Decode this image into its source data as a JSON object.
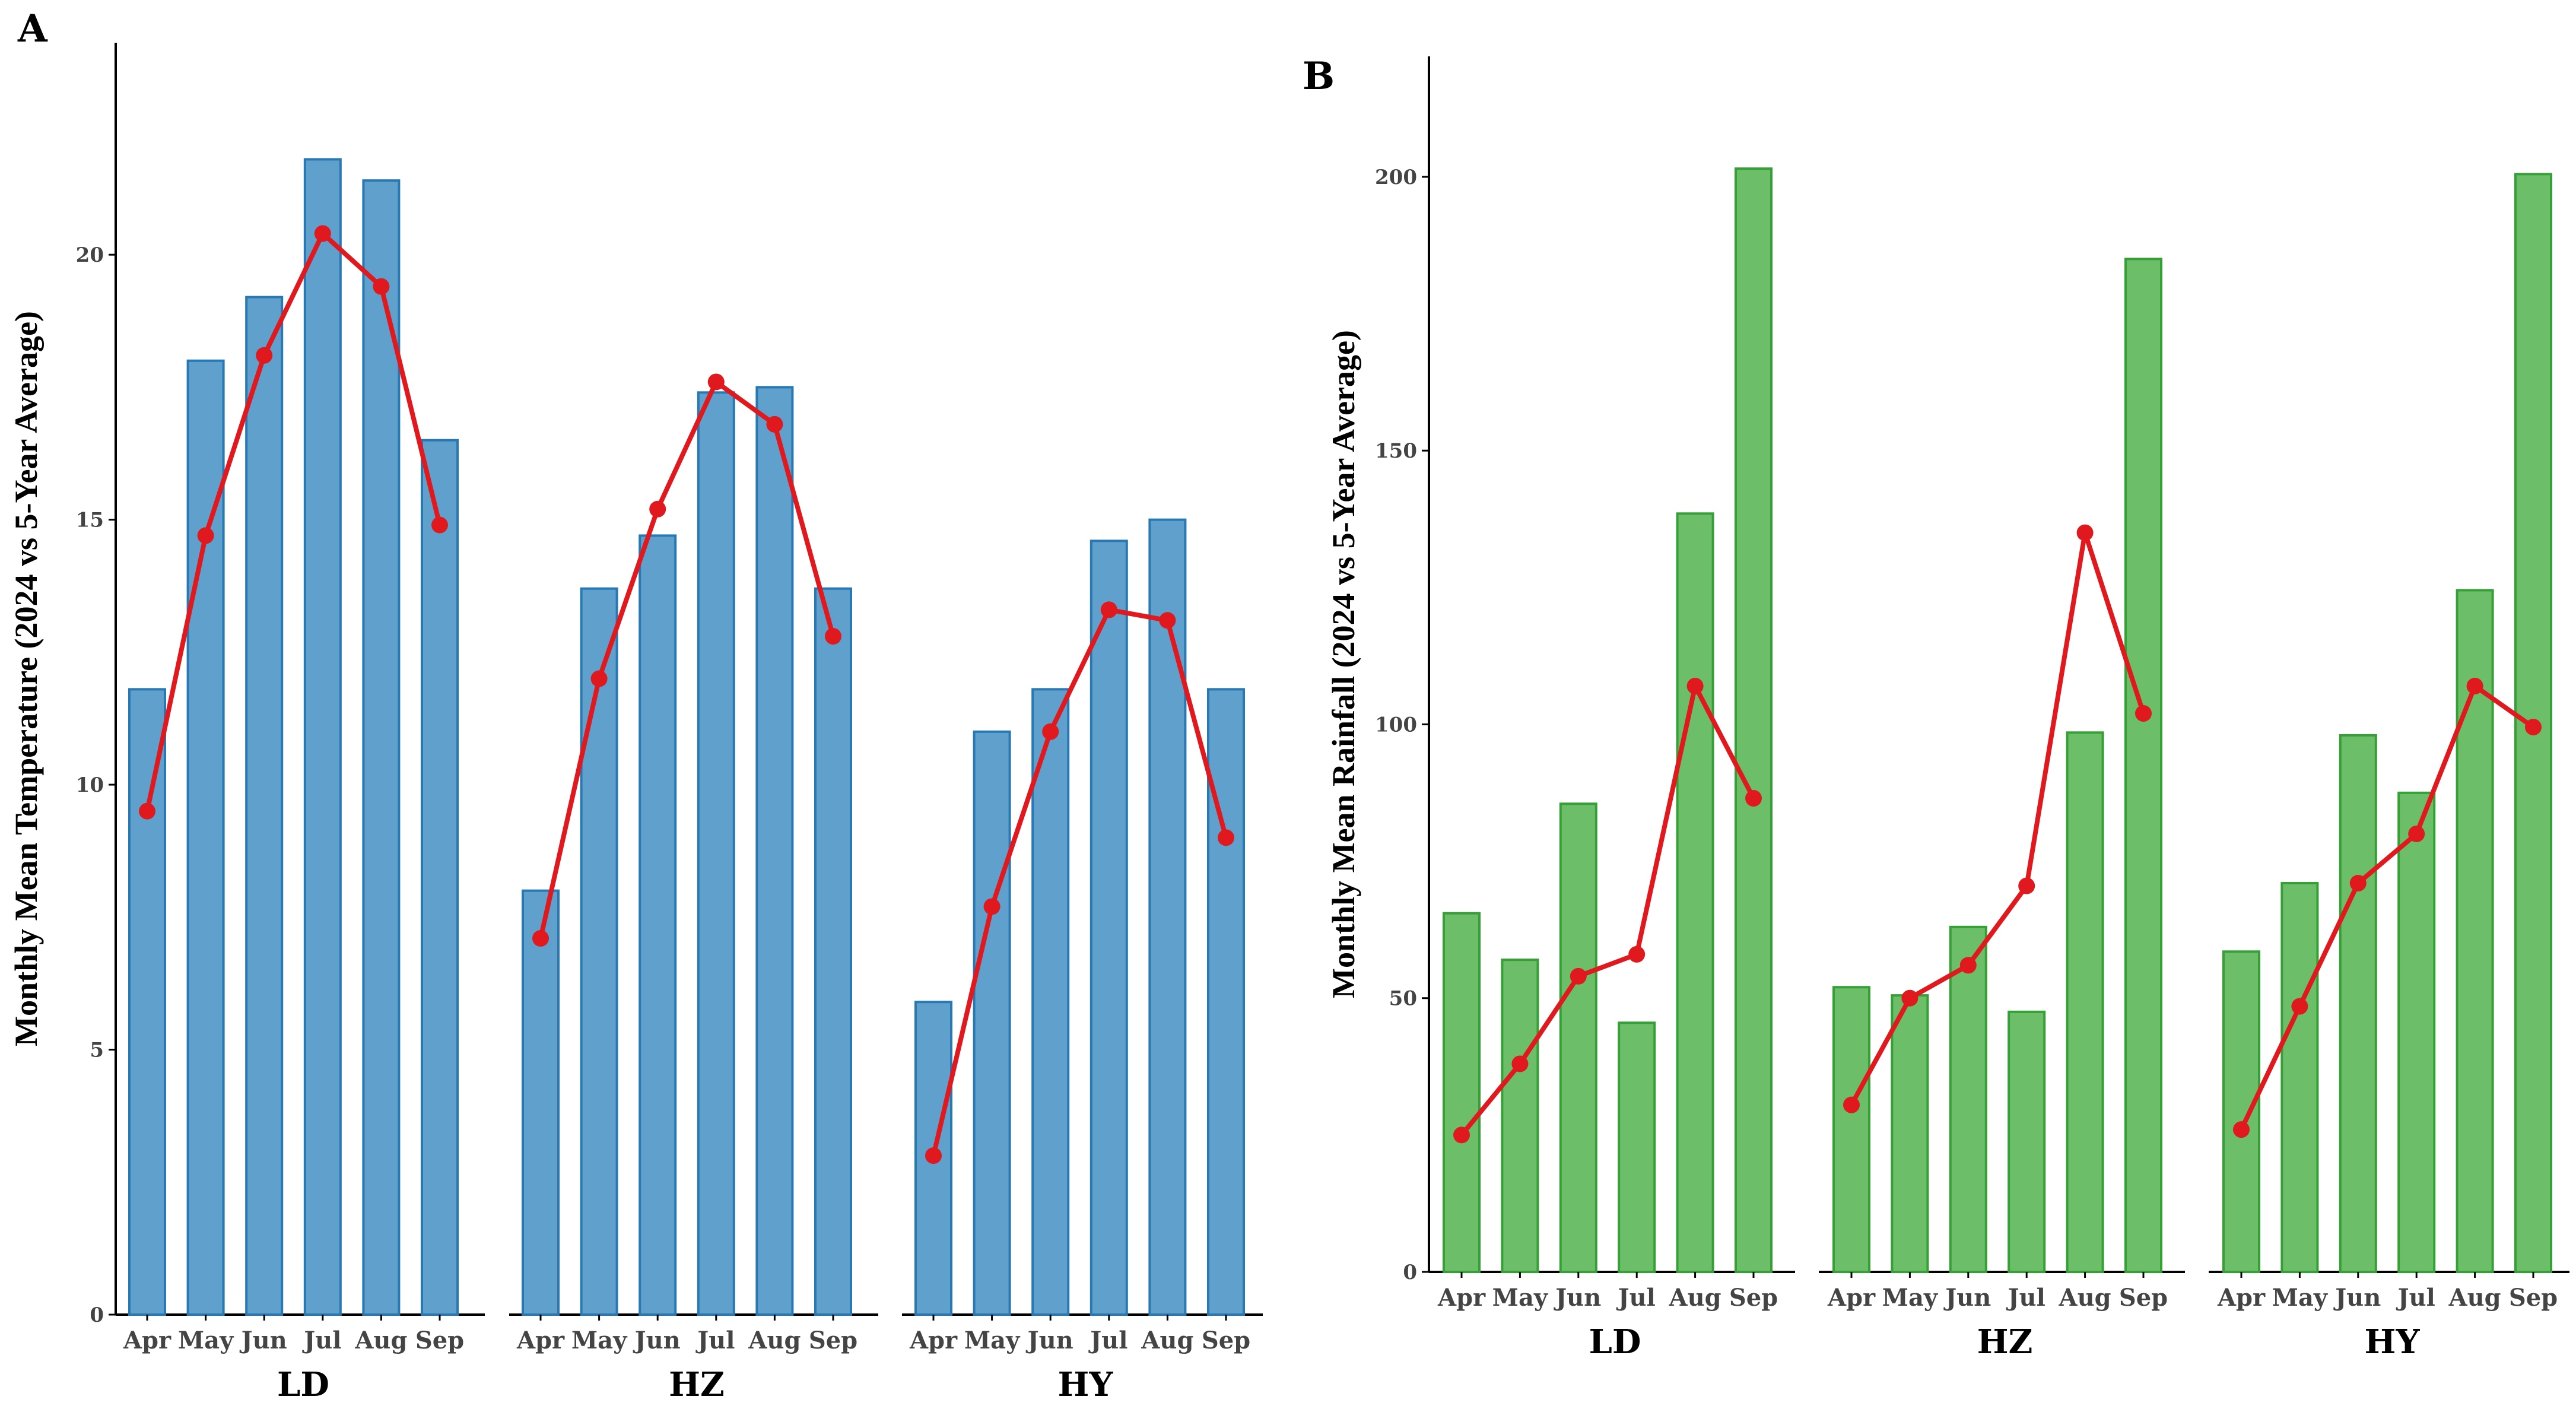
{
  "chart_data": [
    {
      "panel": "A",
      "type": "bar",
      "ylabel": "Monthly Mean Temperature (2024 vs 5-Year Average)",
      "ylim": [
        0,
        24
      ],
      "yticks": [
        "0",
        "5",
        "10",
        "15",
        "20"
      ],
      "ytick_values": [
        0,
        5,
        10,
        15,
        20
      ],
      "categories": [
        "Apr",
        "May",
        "Jun",
        "Jul",
        "Aug",
        "Sep"
      ],
      "colors": {
        "bar_fill": "#5FA0CC",
        "bar_stroke": "#2878B4",
        "line": "#E0191E"
      },
      "facets": [
        {
          "name": "LD",
          "bars": [
            11.8,
            18.0,
            19.2,
            21.8,
            21.4,
            16.5
          ],
          "line": [
            9.5,
            14.7,
            18.1,
            20.4,
            19.4,
            14.9
          ]
        },
        {
          "name": "HZ",
          "bars": [
            8.0,
            13.7,
            14.7,
            17.4,
            17.5,
            13.7
          ],
          "line": [
            7.1,
            12.0,
            15.2,
            17.6,
            16.8,
            12.8
          ]
        },
        {
          "name": "HY",
          "bars": [
            5.9,
            11.0,
            11.8,
            14.6,
            15.0,
            11.8
          ],
          "line": [
            3.0,
            7.7,
            11.0,
            13.3,
            13.1,
            9.0
          ]
        }
      ]
    },
    {
      "panel": "B",
      "type": "bar",
      "ylabel": "Monthly Mean Rainfall (2024 vs 5-Year Average)",
      "ylim": [
        0,
        222
      ],
      "yticks": [
        "0",
        "50",
        "100",
        "150",
        "200"
      ],
      "ytick_values": [
        0,
        50,
        100,
        150,
        200
      ],
      "categories": [
        "Apr",
        "May",
        "Jun",
        "Jul",
        "Aug",
        "Sep"
      ],
      "colors": {
        "bar_fill": "#6DBE68",
        "bar_stroke": "#35A035",
        "line": "#E0191E"
      },
      "facets": [
        {
          "name": "LD",
          "bars": [
            65.5,
            57.0,
            85.5,
            45.5,
            138.5,
            201.5
          ],
          "line": [
            25.0,
            38.0,
            54.0,
            58.0,
            107.0,
            86.5
          ]
        },
        {
          "name": "HZ",
          "bars": [
            52.0,
            50.5,
            63.0,
            47.5,
            98.5,
            185.0
          ],
          "line": [
            30.5,
            50.0,
            56.0,
            70.5,
            135.0,
            102.0
          ]
        },
        {
          "name": "HY",
          "bars": [
            58.5,
            71.0,
            98.0,
            87.5,
            124.5,
            200.5
          ],
          "line": [
            26.0,
            48.5,
            71.0,
            80.0,
            107.0,
            99.5
          ]
        }
      ]
    }
  ]
}
